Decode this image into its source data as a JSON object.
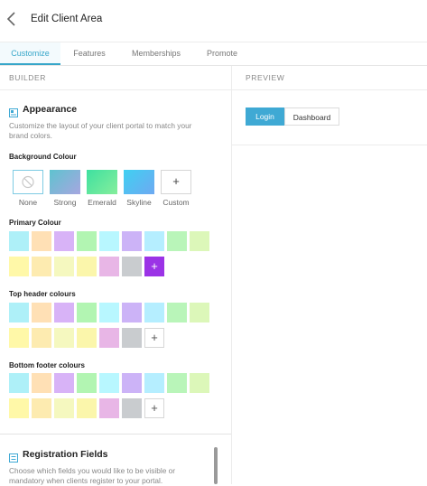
{
  "header": {
    "title": "Edit Client Area"
  },
  "tabs": [
    {
      "label": "Customize"
    },
    {
      "label": "Features"
    },
    {
      "label": "Memberships"
    },
    {
      "label": "Promote"
    }
  ],
  "builder": {
    "label": "BUILDER"
  },
  "preview": {
    "label": "PREVIEW",
    "buttons": [
      {
        "label": "Login"
      },
      {
        "label": "Dashboard"
      }
    ]
  },
  "appearance": {
    "title": "Appearance",
    "description_line1": "Customize the layout of your client portal to match your",
    "description_line2": "brand colors.",
    "background": {
      "title": "Background Colour",
      "options": [
        {
          "label": "None"
        },
        {
          "label": "Strong"
        },
        {
          "label": "Emerald"
        },
        {
          "label": "Skyline"
        },
        {
          "label": "Custom"
        }
      ]
    },
    "primary": {
      "title": "Primary Colour"
    },
    "top_header": {
      "title": "Top header colours"
    },
    "bottom_footer": {
      "title": "Bottom footer colours"
    }
  },
  "palette": {
    "row1": [
      "#aef0f8",
      "#ffe0b5",
      "#d8b3f7",
      "#b2f5b2",
      "#b8f7ff",
      "#ccb3f7",
      "#b5eeff",
      "#b9f5b9",
      "#dcf7b9"
    ],
    "row2": [
      "#fff8a8",
      "#fdebb0",
      "#f5f8bf",
      "#fbf6ab",
      "#e8b6e6",
      "#c9cccf"
    ],
    "primary_custom_selected": "#9b33e6"
  },
  "registration": {
    "title": "Registration Fields",
    "description_line1": "Choose which fields you would like to be visible or",
    "description_line2": "mandatory when clients register to your portal."
  },
  "icons": {
    "back": "chevron-left-icon",
    "appearance": "palette-icon",
    "registration": "form-icon",
    "none": "ban-icon",
    "add": "plus-icon"
  },
  "colors": {
    "accent": "#36a6c9",
    "login_button": "#3fa9d4"
  }
}
